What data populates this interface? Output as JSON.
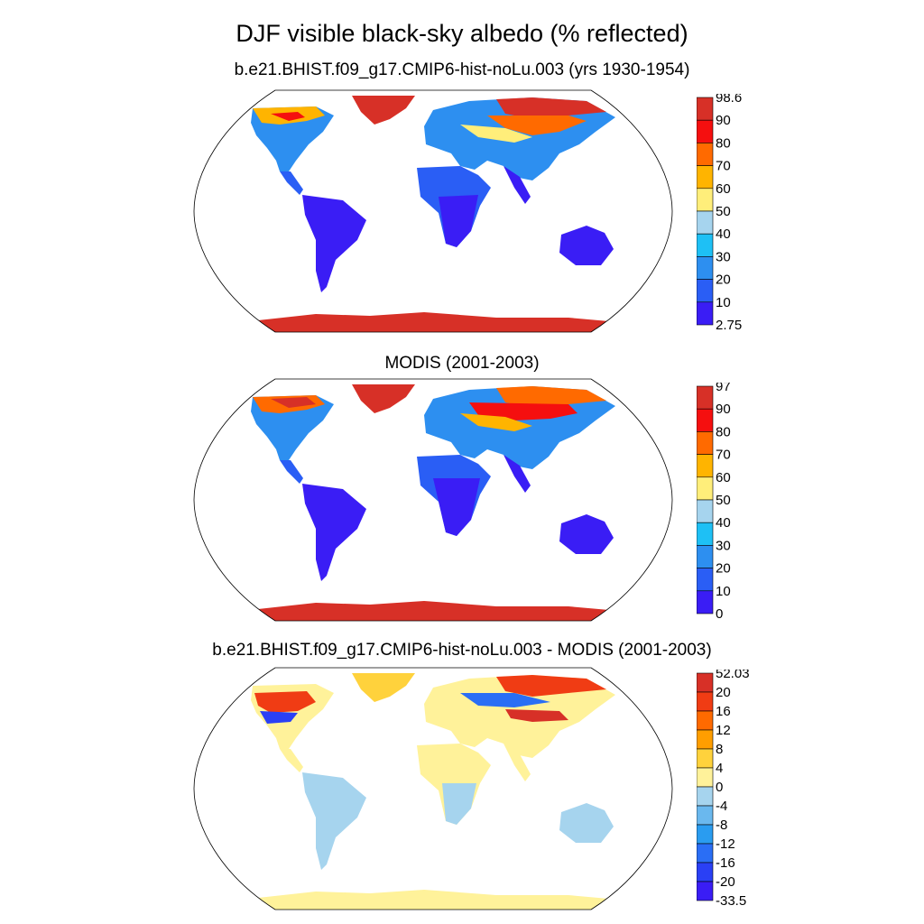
{
  "title": "DJF visible black-sky albedo (% reflected)",
  "panels": [
    {
      "id": "model",
      "subtitle": "b.e21.BHIST.f09_g17.CMIP6-hist-noLu.003 (yrs 1930-1954)",
      "colorbar": {
        "labels": [
          "98.6",
          "90",
          "80",
          "70",
          "60",
          "50",
          "40",
          "30",
          "20",
          "10",
          "2.75"
        ],
        "colors": [
          "#d73027",
          "#f50f0f",
          "#ff6a00",
          "#ffb400",
          "#ffee7a",
          "#a6d4ee",
          "#1ec0f5",
          "#2d8ff0",
          "#2a5ef5",
          "#3a1df5"
        ]
      }
    },
    {
      "id": "obs",
      "subtitle": "MODIS (2001-2003)",
      "colorbar": {
        "labels": [
          "97",
          "90",
          "80",
          "70",
          "60",
          "50",
          "40",
          "30",
          "20",
          "10",
          "0"
        ],
        "colors": [
          "#d73027",
          "#f50f0f",
          "#ff6a00",
          "#ffb400",
          "#ffee7a",
          "#a6d4ee",
          "#1ec0f5",
          "#2d8ff0",
          "#2a5ef5",
          "#3a1df5"
        ]
      }
    },
    {
      "id": "diff",
      "subtitle": "b.e21.BHIST.f09_g17.CMIP6-hist-noLu.003 - MODIS (2001-2003)",
      "colorbar": {
        "labels": [
          "52.03",
          "20",
          "16",
          "12",
          "8",
          "4",
          "0",
          "-4",
          "-8",
          "-12",
          "-16",
          "-20",
          "-33.5"
        ],
        "colors": [
          "#d73027",
          "#f03c14",
          "#ff6a00",
          "#ff9e00",
          "#ffd23c",
          "#fff29a",
          "#a6d4ee",
          "#6ab8ee",
          "#2a9cf0",
          "#2a6ef5",
          "#2a40f5",
          "#3a1df5"
        ]
      }
    }
  ]
}
